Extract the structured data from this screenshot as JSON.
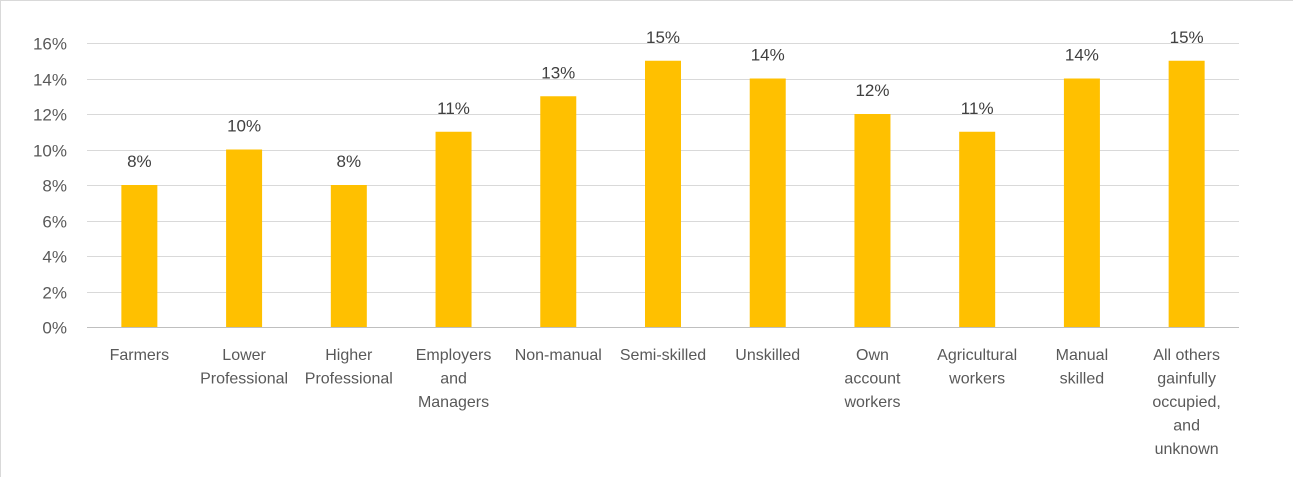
{
  "chart_data": {
    "type": "bar",
    "title": "",
    "xlabel": "",
    "ylabel": "",
    "categories": [
      [
        "Farmers"
      ],
      [
        "Lower",
        "Professional"
      ],
      [
        "Higher",
        "Professional"
      ],
      [
        "Employers",
        "and",
        "Managers"
      ],
      [
        "Non-manual"
      ],
      [
        "Semi-skilled"
      ],
      [
        "Unskilled"
      ],
      [
        "Own",
        "account",
        "workers"
      ],
      [
        "Agricultural",
        "workers"
      ],
      [
        "Manual",
        "skilled"
      ],
      [
        "All others",
        "gainfully",
        "occupied,",
        "and",
        "unknown"
      ]
    ],
    "values": [
      8,
      10,
      8,
      11,
      13,
      15,
      14,
      12,
      11,
      14,
      15
    ],
    "data_labels": [
      "8%",
      "10%",
      "8%",
      "11%",
      "13%",
      "15%",
      "14%",
      "12%",
      "11%",
      "14%",
      "15%"
    ],
    "ylim": [
      0,
      16
    ],
    "yticks": [
      0,
      2,
      4,
      6,
      8,
      10,
      12,
      14,
      16
    ],
    "ytick_labels": [
      "0%",
      "2%",
      "4%",
      "6%",
      "8%",
      "10%",
      "12%",
      "14%",
      "16%"
    ],
    "grid": true,
    "legend": "none",
    "colors": {
      "bar": "#FFC000",
      "grid": "#d9d9d9",
      "axis": "#bfbfbf",
      "text": "#595959"
    }
  }
}
